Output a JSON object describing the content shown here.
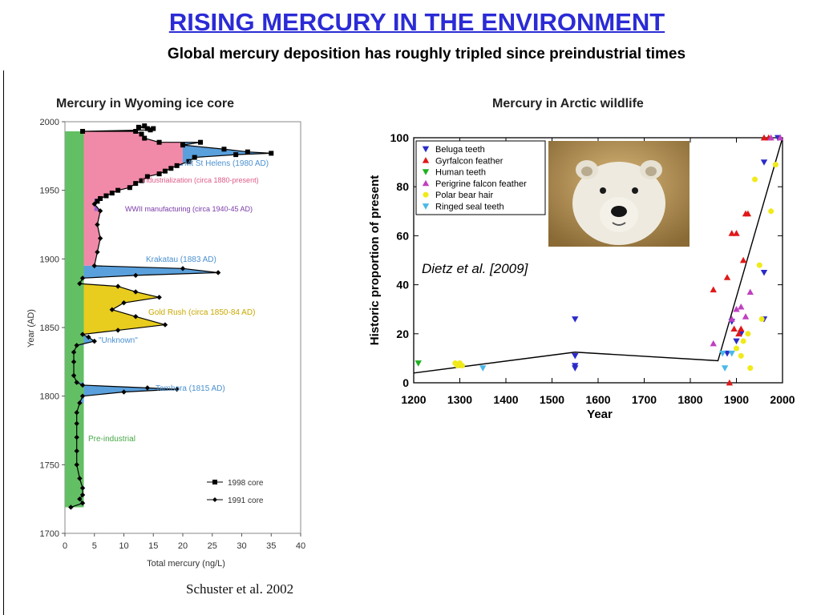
{
  "slide": {
    "title": "RISING MERCURY IN THE ENVIRONMENT",
    "subtitle": "Global mercury deposition has roughly tripled since preindustrial times",
    "left_citation": "Schuster et al. 2002",
    "right_citation": "Dietz et al. [2009]",
    "photo_icon": "polar-bear-photo"
  },
  "chart_data": [
    {
      "type": "line",
      "title": "Mercury in Wyoming ice core",
      "xlabel": "Total mercury (ng/L)",
      "ylabel": "Year (AD)",
      "xlim": [
        0,
        40
      ],
      "ylim": [
        1700,
        2000
      ],
      "x_ticks": [
        0,
        5,
        10,
        15,
        20,
        25,
        30,
        35,
        40
      ],
      "y_ticks": [
        1700,
        1750,
        1800,
        1850,
        1900,
        1950,
        2000
      ],
      "legend_position": "bottom-right",
      "series": [
        {
          "name": "1998 core",
          "marker": "square",
          "color": "#000000",
          "points": [
            [
              3,
              1993
            ],
            [
              12,
              1993
            ],
            [
              12.5,
              1996
            ],
            [
              13.5,
              1997
            ],
            [
              14,
              1995
            ],
            [
              15,
              1995
            ],
            [
              14.5,
              1994
            ],
            [
              13,
              1991
            ],
            [
              13.5,
              1988
            ],
            [
              16,
              1985
            ],
            [
              20,
              1983
            ],
            [
              23,
              1985
            ],
            [
              27,
              1980
            ],
            [
              31,
              1978
            ],
            [
              35,
              1977
            ],
            [
              29,
              1976
            ],
            [
              22,
              1974
            ],
            [
              21,
              1971
            ],
            [
              19,
              1968
            ],
            [
              18,
              1966
            ],
            [
              17,
              1964
            ],
            [
              16,
              1962
            ],
            [
              14,
              1960
            ],
            [
              13,
              1957
            ],
            [
              12,
              1955
            ],
            [
              11,
              1952
            ],
            [
              9,
              1950
            ],
            [
              8,
              1948
            ],
            [
              7,
              1946
            ],
            [
              6,
              1944
            ],
            [
              5.5,
              1942
            ]
          ]
        },
        {
          "name": "1991 core",
          "marker": "diamond",
          "color": "#000000",
          "points": [
            [
              5,
              1940
            ],
            [
              6,
              1935
            ],
            [
              5.5,
              1925
            ],
            [
              6,
              1915
            ],
            [
              5.5,
              1905
            ],
            [
              5,
              1895
            ],
            [
              20,
              1893
            ],
            [
              26,
              1890
            ],
            [
              12,
              1888
            ],
            [
              3,
              1886
            ],
            [
              2.5,
              1882
            ],
            [
              9,
              1880
            ],
            [
              12,
              1876
            ],
            [
              16,
              1872
            ],
            [
              10,
              1868
            ],
            [
              8,
              1863
            ],
            [
              12,
              1858
            ],
            [
              17,
              1852
            ],
            [
              9,
              1848
            ],
            [
              3,
              1845
            ],
            [
              4,
              1843
            ],
            [
              5,
              1840
            ],
            [
              2,
              1837
            ],
            [
              1.5,
              1832
            ],
            [
              1.5,
              1825
            ],
            [
              1.5,
              1815
            ],
            [
              2,
              1810
            ],
            [
              3,
              1808
            ],
            [
              14,
              1806
            ],
            [
              19,
              1805
            ],
            [
              10,
              1803
            ],
            [
              3,
              1800
            ],
            [
              2.5,
              1795
            ],
            [
              2,
              1788
            ],
            [
              2,
              1780
            ],
            [
              2,
              1770
            ],
            [
              2,
              1760
            ],
            [
              2,
              1750
            ],
            [
              2.5,
              1740
            ],
            [
              3,
              1733
            ],
            [
              3,
              1728
            ],
            [
              2.5,
              1725
            ],
            [
              3,
              1722
            ],
            [
              1,
              1719
            ]
          ]
        }
      ],
      "baseline": {
        "x": 3.2,
        "from_year": 1895,
        "to_year": 1993
      },
      "events": [
        {
          "label": "Mt St Helens (1980 AD)",
          "year_from": 1968,
          "year_to": 1985,
          "peak": 35,
          "color": "#5aa0dc"
        },
        {
          "label": "Industrialization (circa 1880-present)",
          "year_from": 1895,
          "year_to": 1993,
          "color": "#f08aa8"
        },
        {
          "label": "WWII manufacturing (circa 1940-45 AD)",
          "year_from": 1928,
          "year_to": 1945,
          "color": "#9a5ec8"
        },
        {
          "label": "Krakatau (1883 AD)",
          "year_from": 1885,
          "year_to": 1895,
          "peak": 26,
          "color": "#5aa0dc"
        },
        {
          "label": "Gold Rush (circa 1850-84 AD)",
          "year_from": 1845,
          "year_to": 1884,
          "color": "#e8cc1e"
        },
        {
          "label": "\"Unknown\"",
          "year_from": 1836,
          "year_to": 1845,
          "peak": 5,
          "color": "#5aa0dc"
        },
        {
          "label": "Tambora (1815 AD)",
          "year_from": 1795,
          "year_to": 1812,
          "peak": 19,
          "color": "#5aa0dc"
        },
        {
          "label": "Pre-industrial",
          "year_from": 1719,
          "year_to": 1993,
          "color": "#63bf63"
        }
      ]
    },
    {
      "type": "scatter",
      "title": "Mercury in Arctic wildlife",
      "xlabel": "Year",
      "ylabel": "Historic proportion of present",
      "xlim": [
        1200,
        2000
      ],
      "ylim": [
        0,
        100
      ],
      "x_ticks": [
        1200,
        1300,
        1400,
        1500,
        1600,
        1700,
        1800,
        1900,
        2000
      ],
      "y_ticks": [
        0,
        20,
        40,
        60,
        80,
        100
      ],
      "legend_position": "top-left",
      "series": [
        {
          "name": "Beluga teeth",
          "marker": "triangle-down",
          "color": "#2b2bc8",
          "points": [
            [
              1550,
              26
            ],
            [
              1550,
              11
            ],
            [
              1550,
              7
            ],
            [
              1550,
              6
            ],
            [
              1880,
              12
            ],
            [
              1890,
              25
            ],
            [
              1900,
              17
            ],
            [
              1910,
              20
            ],
            [
              1960,
              90
            ],
            [
              1960,
              45
            ],
            [
              1960,
              26
            ],
            [
              1990,
              100
            ]
          ]
        },
        {
          "name": "Gyrfalcon feather",
          "marker": "triangle-up",
          "color": "#e01818",
          "points": [
            [
              1850,
              38
            ],
            [
              1880,
              43
            ],
            [
              1885,
              0
            ],
            [
              1890,
              61
            ],
            [
              1900,
              61
            ],
            [
              1895,
              22
            ],
            [
              1905,
              20
            ],
            [
              1910,
              22
            ],
            [
              1915,
              50
            ],
            [
              1920,
              69
            ],
            [
              1925,
              69
            ],
            [
              1960,
              100
            ],
            [
              1970,
              100
            ]
          ]
        },
        {
          "name": "Human teeth",
          "marker": "triangle-down",
          "color": "#1fb01f",
          "points": [
            [
              1210,
              8
            ]
          ]
        },
        {
          "name": "Perigrine falcon feather",
          "marker": "triangle-up",
          "color": "#c040c0",
          "points": [
            [
              1850,
              16
            ],
            [
              1890,
              26
            ],
            [
              1900,
              30
            ],
            [
              1910,
              31
            ],
            [
              1920,
              27
            ],
            [
              1930,
              37
            ],
            [
              1975,
              100
            ],
            [
              1995,
              100
            ]
          ]
        },
        {
          "name": "Polar bear hair",
          "marker": "circle",
          "color": "#f0ea1a",
          "points": [
            [
              1290,
              8
            ],
            [
              1295,
              7
            ],
            [
              1300,
              8
            ],
            [
              1305,
              7
            ],
            [
              1900,
              14
            ],
            [
              1910,
              11
            ],
            [
              1915,
              17
            ],
            [
              1925,
              20
            ],
            [
              1930,
              6
            ],
            [
              1940,
              83
            ],
            [
              1950,
              48
            ],
            [
              1955,
              26
            ],
            [
              1975,
              70
            ],
            [
              1985,
              89
            ]
          ]
        },
        {
          "name": "Ringed seal teeth",
          "marker": "triangle-down",
          "color": "#4ab8e8",
          "points": [
            [
              1350,
              6
            ],
            [
              1870,
              12
            ],
            [
              1875,
              6
            ],
            [
              1890,
              12
            ]
          ]
        }
      ],
      "trend_line": [
        [
          1200,
          4
        ],
        [
          1550,
          12.5
        ],
        [
          1860,
          9
        ],
        [
          2000,
          100
        ]
      ]
    }
  ]
}
